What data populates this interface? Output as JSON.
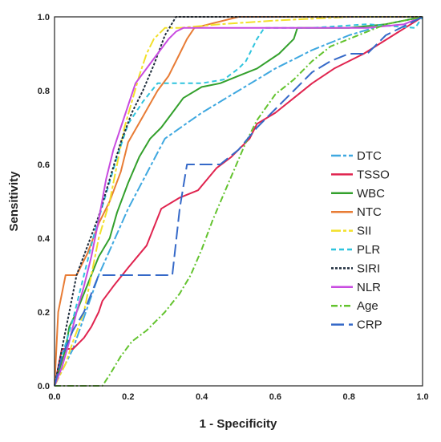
{
  "chart_data": {
    "type": "line",
    "title": "",
    "xlabel": "1 - Specificity",
    "ylabel": "Sensitivity",
    "xlim": [
      0,
      1
    ],
    "ylim": [
      0,
      1
    ],
    "x_ticks": [
      "0.0",
      "0.2",
      "0.4",
      "0.6",
      "0.8",
      "1.0"
    ],
    "y_ticks": [
      "0.0",
      "0.2",
      "0.4",
      "0.6",
      "0.8",
      "1.0"
    ],
    "grid": false,
    "legend_position": "right",
    "series": [
      {
        "name": "DTC",
        "color": "#3fa8e0",
        "dash": "long-short",
        "x": [
          0,
          0.05,
          0.12,
          0.2,
          0.3,
          0.4,
          0.5,
          0.6,
          0.7,
          0.8,
          0.9,
          1.0
        ],
        "y": [
          0,
          0.1,
          0.3,
          0.48,
          0.67,
          0.74,
          0.8,
          0.86,
          0.91,
          0.95,
          0.98,
          1.0
        ]
      },
      {
        "name": "TSSO",
        "color": "#e0244f",
        "dash": "solid",
        "x": [
          0,
          0.01,
          0.02,
          0.05,
          0.08,
          0.1,
          0.12,
          0.13,
          0.16,
          0.2,
          0.25,
          0.29,
          0.34,
          0.39,
          0.44,
          0.48,
          0.53,
          0.55,
          0.6,
          0.65,
          0.7,
          0.76,
          0.84,
          0.92,
          1.0
        ],
        "y": [
          0,
          0.05,
          0.1,
          0.1,
          0.13,
          0.16,
          0.2,
          0.23,
          0.27,
          0.32,
          0.38,
          0.48,
          0.51,
          0.53,
          0.59,
          0.62,
          0.67,
          0.71,
          0.74,
          0.78,
          0.82,
          0.86,
          0.9,
          0.95,
          1.0
        ]
      },
      {
        "name": "WBC",
        "color": "#33a02c",
        "dash": "solid",
        "x": [
          0,
          0.03,
          0.04,
          0.06,
          0.08,
          0.1,
          0.12,
          0.15,
          0.17,
          0.2,
          0.23,
          0.26,
          0.29,
          0.32,
          0.35,
          0.4,
          0.45,
          0.5,
          0.55,
          0.61,
          0.65,
          0.66,
          0.8,
          0.9,
          1.0
        ],
        "y": [
          0,
          0.1,
          0.16,
          0.2,
          0.25,
          0.3,
          0.35,
          0.4,
          0.47,
          0.55,
          0.62,
          0.67,
          0.7,
          0.74,
          0.78,
          0.81,
          0.82,
          0.84,
          0.86,
          0.9,
          0.94,
          0.97,
          0.97,
          0.98,
          1.0
        ]
      },
      {
        "name": "NTC",
        "color": "#e87c35",
        "dash": "solid",
        "x": [
          0,
          0.01,
          0.03,
          0.06,
          0.09,
          0.12,
          0.15,
          0.18,
          0.2,
          0.24,
          0.28,
          0.31,
          0.34,
          0.36,
          0.38,
          0.5,
          0.7,
          0.85,
          1.0
        ],
        "y": [
          0,
          0.2,
          0.3,
          0.3,
          0.36,
          0.44,
          0.5,
          0.58,
          0.66,
          0.73,
          0.8,
          0.84,
          0.9,
          0.94,
          0.97,
          1.0,
          1.0,
          1.0,
          1.0
        ]
      },
      {
        "name": "SII",
        "color": "#f2e02a",
        "dash": "long-short",
        "x": [
          0,
          0.03,
          0.05,
          0.08,
          0.1,
          0.12,
          0.15,
          0.17,
          0.19,
          0.21,
          0.23,
          0.25,
          0.27,
          0.3,
          0.34,
          0.45,
          0.6,
          0.8,
          1.0
        ],
        "y": [
          0,
          0.06,
          0.12,
          0.2,
          0.3,
          0.4,
          0.5,
          0.6,
          0.7,
          0.77,
          0.84,
          0.9,
          0.94,
          0.97,
          0.97,
          0.98,
          0.99,
          1.0,
          1.0
        ]
      },
      {
        "name": "PLR",
        "color": "#2fc4de",
        "dash": "dashed",
        "x": [
          0,
          0.02,
          0.05,
          0.08,
          0.11,
          0.14,
          0.17,
          0.2,
          0.24,
          0.28,
          0.33,
          0.4,
          0.46,
          0.5,
          0.52,
          0.55,
          0.57,
          0.7,
          0.85,
          0.98,
          1.0
        ],
        "y": [
          0,
          0.08,
          0.18,
          0.3,
          0.42,
          0.52,
          0.62,
          0.71,
          0.77,
          0.82,
          0.82,
          0.82,
          0.83,
          0.86,
          0.88,
          0.94,
          0.97,
          0.97,
          0.98,
          0.97,
          1.0
        ]
      },
      {
        "name": "SIRI",
        "color": "#1f2d3d",
        "dash": "dense-dash",
        "x": [
          0,
          0.02,
          0.04,
          0.06,
          0.09,
          0.12,
          0.15,
          0.18,
          0.21,
          0.24,
          0.27,
          0.3,
          0.33,
          0.4,
          0.6,
          0.8,
          1.0
        ],
        "y": [
          0,
          0.1,
          0.2,
          0.3,
          0.38,
          0.46,
          0.56,
          0.66,
          0.74,
          0.8,
          0.87,
          0.95,
          1.0,
          1.0,
          1.0,
          1.0,
          1.0
        ]
      },
      {
        "name": "NLR",
        "color": "#c84be0",
        "dash": "solid",
        "x": [
          0,
          0.02,
          0.04,
          0.06,
          0.08,
          0.1,
          0.12,
          0.14,
          0.16,
          0.18,
          0.2,
          0.22,
          0.25,
          0.28,
          0.31,
          0.33,
          0.35,
          0.37,
          0.5,
          0.7,
          0.85,
          0.95,
          1.0
        ],
        "y": [
          0,
          0.05,
          0.12,
          0.2,
          0.27,
          0.35,
          0.45,
          0.56,
          0.64,
          0.7,
          0.76,
          0.82,
          0.86,
          0.9,
          0.94,
          0.96,
          0.97,
          0.97,
          0.97,
          0.97,
          0.97,
          0.98,
          1.0
        ]
      },
      {
        "name": "Age",
        "color": "#63c32e",
        "dash": "dash-dot",
        "x": [
          0,
          0.05,
          0.1,
          0.13,
          0.15,
          0.18,
          0.21,
          0.25,
          0.3,
          0.34,
          0.37,
          0.4,
          0.43,
          0.46,
          0.49,
          0.52,
          0.55,
          0.6,
          0.65,
          0.7,
          0.75,
          0.8,
          0.85,
          0.9,
          0.95,
          1.0
        ],
        "y": [
          0,
          0,
          0,
          0,
          0.03,
          0.08,
          0.12,
          0.15,
          0.2,
          0.25,
          0.3,
          0.37,
          0.45,
          0.52,
          0.59,
          0.66,
          0.72,
          0.79,
          0.83,
          0.88,
          0.92,
          0.94,
          0.96,
          0.98,
          0.99,
          1.0
        ]
      },
      {
        "name": "CRP",
        "color": "#3569c8",
        "dash": "long-dash",
        "x": [
          0,
          0.02,
          0.05,
          0.08,
          0.12,
          0.15,
          0.25,
          0.32,
          0.34,
          0.36,
          0.4,
          0.45,
          0.5,
          0.55,
          0.6,
          0.65,
          0.7,
          0.75,
          0.8,
          0.85,
          0.9,
          1.0
        ],
        "y": [
          0,
          0.08,
          0.15,
          0.2,
          0.3,
          0.3,
          0.3,
          0.3,
          0.48,
          0.6,
          0.6,
          0.6,
          0.64,
          0.7,
          0.75,
          0.8,
          0.85,
          0.88,
          0.9,
          0.9,
          0.95,
          1.0
        ]
      }
    ]
  }
}
